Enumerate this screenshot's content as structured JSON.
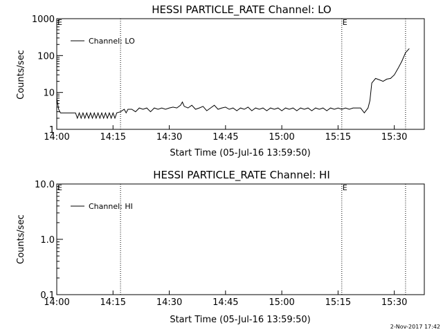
{
  "chart_data": [
    {
      "type": "line",
      "title": "HESSI PARTICLE_RATE Channel: LO",
      "xlabel": "Start Time (05-Jul-16 13:59:50)",
      "ylabel": "Counts/sec",
      "yscale": "log",
      "ylim": [
        1,
        1000
      ],
      "xlim": [
        "14:00",
        "15:38"
      ],
      "x_ticks": [
        "14:00",
        "14:15",
        "14:30",
        "14:45",
        "15:00",
        "15:15",
        "15:30"
      ],
      "y_ticks": [
        "1",
        "10",
        "100",
        "1000"
      ],
      "grid": false,
      "legend_position": "top-left",
      "marker_label": "E",
      "vertical_markers": [
        "14:17",
        "15:16",
        "15:33"
      ],
      "series": [
        {
          "name": "Channel: LO",
          "color": "#000000",
          "x": [
            "14:00",
            "14:00.5",
            "14:01",
            "14:02",
            "14:03",
            "14:04",
            "14:05",
            "14:05.5",
            "14:06",
            "14:06.5",
            "14:07",
            "14:07.5",
            "14:08",
            "14:08.5",
            "14:09",
            "14:09.5",
            "14:10",
            "14:10.5",
            "14:11",
            "14:11.5",
            "14:12",
            "14:12.5",
            "14:13",
            "14:13.5",
            "14:14",
            "14:14.5",
            "14:15",
            "14:15.5",
            "14:16",
            "14:17",
            "14:18",
            "14:18.5",
            "14:19",
            "14:20",
            "14:21",
            "14:22",
            "14:23",
            "14:24",
            "14:25",
            "14:26",
            "14:27",
            "14:28",
            "14:29",
            "14:30",
            "14:31",
            "14:32",
            "14:33",
            "14:33.5",
            "14:34",
            "14:35",
            "14:36",
            "14:37",
            "14:38",
            "14:39",
            "14:40",
            "14:41",
            "14:42",
            "14:43",
            "14:44",
            "14:45",
            "14:46",
            "14:47",
            "14:48",
            "14:49",
            "14:50",
            "14:51",
            "14:52",
            "14:53",
            "14:54",
            "14:55",
            "14:56",
            "14:57",
            "14:58",
            "14:59",
            "15:00",
            "15:01",
            "15:02",
            "15:03",
            "15:04",
            "15:05",
            "15:06",
            "15:07",
            "15:08",
            "15:09",
            "15:10",
            "15:11",
            "15:12",
            "15:13",
            "15:14",
            "15:15",
            "15:16",
            "15:17",
            "15:18",
            "15:19",
            "15:20",
            "15:21",
            "15:22",
            "15:23",
            "15:23.5",
            "15:24",
            "15:25",
            "15:26",
            "15:27",
            "15:28",
            "15:29",
            "15:30",
            "15:31",
            "15:32",
            "15:33",
            "15:34"
          ],
          "y": [
            7,
            3.5,
            2.8,
            2.8,
            2.8,
            2.8,
            2.8,
            2.0,
            2.8,
            2.0,
            2.8,
            2.0,
            2.8,
            2.0,
            2.8,
            2.0,
            2.8,
            2.0,
            2.8,
            2.0,
            2.8,
            2.0,
            2.8,
            2.0,
            2.8,
            2.0,
            2.8,
            2.0,
            2.8,
            3.0,
            3.5,
            2.8,
            3.5,
            3.5,
            3.0,
            3.8,
            3.5,
            3.8,
            3.0,
            3.8,
            3.5,
            3.8,
            3.5,
            3.8,
            4.0,
            3.8,
            4.5,
            5.5,
            4.2,
            3.8,
            4.5,
            3.5,
            3.8,
            4.2,
            3.2,
            3.8,
            4.5,
            3.5,
            3.8,
            4.0,
            3.5,
            3.8,
            3.2,
            3.8,
            3.5,
            4.0,
            3.2,
            3.8,
            3.5,
            3.8,
            3.2,
            3.8,
            3.5,
            3.8,
            3.2,
            3.8,
            3.5,
            3.8,
            3.2,
            3.8,
            3.5,
            3.8,
            3.2,
            3.8,
            3.5,
            3.8,
            3.2,
            3.8,
            3.5,
            3.8,
            3.5,
            3.8,
            3.5,
            3.8,
            3.8,
            3.8,
            2.8,
            3.8,
            6,
            18,
            24,
            22,
            20,
            23,
            24,
            30,
            45,
            70,
            120,
            155
          ]
        }
      ]
    },
    {
      "type": "line",
      "title": "HESSI PARTICLE_RATE Channel: HI",
      "xlabel": "Start Time (05-Jul-16 13:59:50)",
      "ylabel": "Counts/sec",
      "yscale": "log",
      "ylim": [
        0.1,
        10
      ],
      "xlim": [
        "14:00",
        "15:38"
      ],
      "x_ticks": [
        "14:00",
        "14:15",
        "14:30",
        "14:45",
        "15:00",
        "15:15",
        "15:30"
      ],
      "y_ticks": [
        "0.1",
        "1.0",
        "10.0"
      ],
      "grid": false,
      "legend_position": "top-left",
      "marker_label": "E",
      "vertical_markers": [
        "14:17",
        "15:16",
        "15:33"
      ],
      "series": [
        {
          "name": "Channel: HI",
          "color": "#000000",
          "x": [],
          "y": []
        }
      ]
    }
  ],
  "footer": {
    "timestamp": "2-Nov-2017 17:42"
  }
}
